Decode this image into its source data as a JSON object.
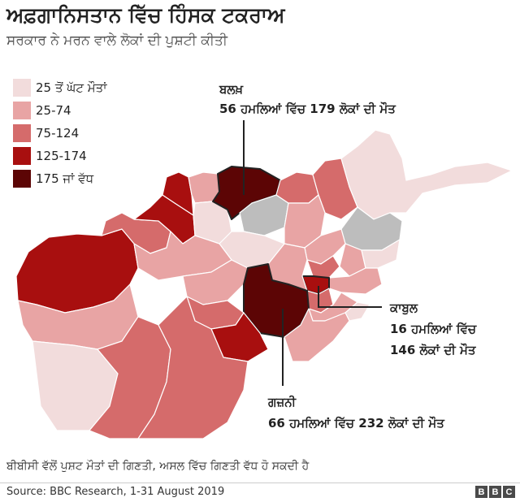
{
  "header": {
    "title": "ਅਫ਼ਗਾਨਿਸਤਾਨ ਵਿੱਚ ਹਿੰਸਕ ਟਕਰਾਅ",
    "subtitle": "ਸਰਕਾਰ ਨੇ ਮਰਨ ਵਾਲੇ ਲੋਕਾਂ ਦੀ ਪੁਸ਼ਟੀ ਕੀਤੀ"
  },
  "legend": [
    {
      "label": "25 ਤੋਂ ਘੱਟ ਮੌਤਾਂ",
      "color": "#f2dcdc"
    },
    {
      "label": "25-74",
      "color": "#e8a4a4"
    },
    {
      "label": "75-124",
      "color": "#d56b6b"
    },
    {
      "label": "125-174",
      "color": "#a80f0f"
    },
    {
      "label": "175 ਜਾਂ ਵੱਧ",
      "color": "#5c0505"
    }
  ],
  "no_data_color": "#bdbdbd",
  "annotations": {
    "balkh": {
      "name": "ਬਲਖ਼",
      "detail": "56 ਹਮਲਿਆਂ ਵਿੱਚ 179 ਲੋਕਾਂ ਦੀ ਮੌਤ"
    },
    "kabul": {
      "name": "ਕਾਬੁਲ",
      "line1": "16 ਹਮਲਿਆਂ ਵਿੱਚ",
      "line2": "146 ਲੋਕਾਂ ਦੀ ਮੌਤ"
    },
    "ghazni": {
      "name": "ਗਜ਼ਨੀ",
      "detail": "66 ਹਮਲਿਆਂ ਵਿੱਚ 232 ਲੋਕਾਂ ਦੀ ਮੌਤ"
    }
  },
  "footnote": "ਬੀਬੀਸੀ ਵੱਲੋਂ ਪੁਸ਼ਟ ਮੌਤਾਂ ਦੀ ਗਿਣਤੀ, ਅਸਲ ਵਿੱਚ ਗਿਣਤੀ ਵੱਧ ਹੋ ਸਕਦੀ ਹੈ",
  "source": "Source: BBC Research, 1-31 August 2019",
  "logo": [
    "B",
    "B",
    "C"
  ]
}
